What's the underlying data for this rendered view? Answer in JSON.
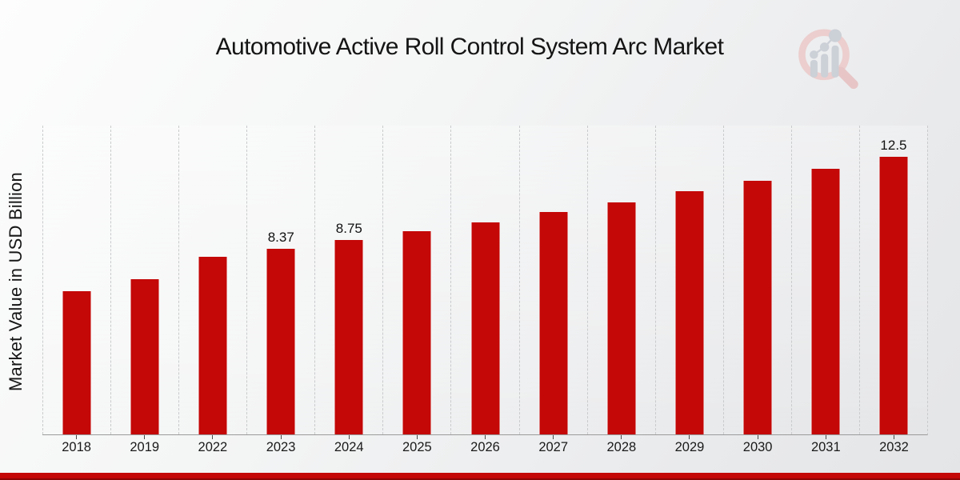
{
  "page": {
    "title": "Automotive Active Roll Control System Arc Market"
  },
  "axes": {
    "y_label": "Market Value in USD Billion"
  },
  "branding": {
    "logo_icon": "magnifier-bar-chart-logo",
    "accent_color": "#c40707"
  },
  "chart_data": {
    "type": "bar",
    "title": "Automotive Active Roll Control System Arc Market",
    "xlabel": "",
    "ylabel": "Market Value in USD Billion",
    "categories": [
      "2018",
      "2019",
      "2022",
      "2023",
      "2024",
      "2025",
      "2026",
      "2027",
      "2028",
      "2029",
      "2030",
      "2031",
      "2032"
    ],
    "values": [
      6.45,
      7.0,
      8.0,
      8.37,
      8.75,
      9.15,
      9.56,
      10.0,
      10.45,
      10.93,
      11.42,
      11.94,
      12.5
    ],
    "data_labels": {
      "2023": "8.37",
      "2024": "8.75",
      "2032": "12.5"
    },
    "ylim": [
      0,
      13.9
    ],
    "bar_color": "#c40707",
    "grid": "vertical dashed category separators",
    "legend_position": "none"
  }
}
